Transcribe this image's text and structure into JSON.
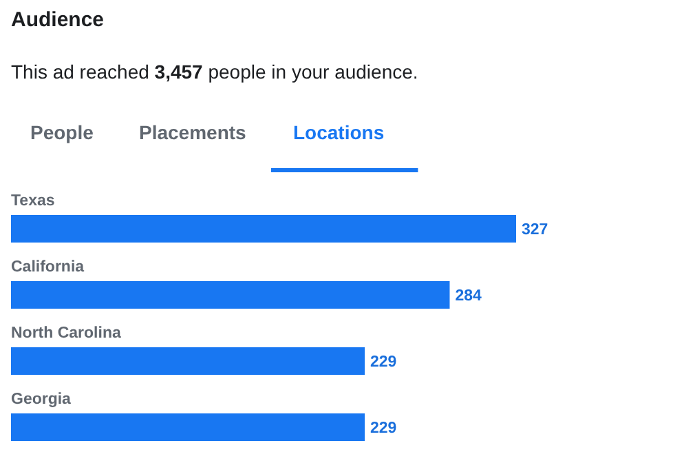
{
  "chart_data": {
    "type": "bar",
    "orientation": "horizontal",
    "title": "Audience",
    "subtitle": "This ad reached 3,457 people in your audience.",
    "annotations": [
      "People",
      "Placements",
      "Locations"
    ],
    "categories": [
      "Texas",
      "California",
      "North Carolina",
      "Georgia"
    ],
    "values": [
      327,
      284,
      229,
      229
    ],
    "color": "#1877f2",
    "data_labels": true
  }
}
